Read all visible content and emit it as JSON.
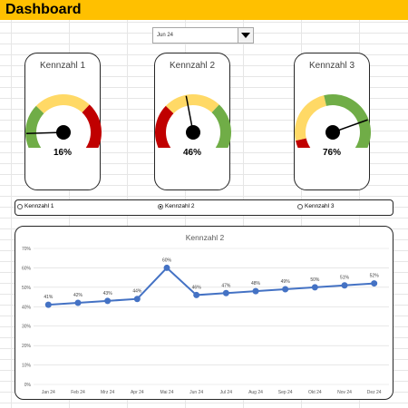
{
  "header": {
    "title": "Dashboard"
  },
  "month_select": {
    "value": "Jun 24"
  },
  "gauges": [
    {
      "title": "Kennzahl 1",
      "value_label": "16%",
      "value": 0.16
    },
    {
      "title": "Kennzahl 2",
      "value_label": "46%",
      "value": 0.46
    },
    {
      "title": "Kennzahl 3",
      "value_label": "76%",
      "value": 0.76
    }
  ],
  "gauge_colors": {
    "green": "#70ad47",
    "yellow": "#ffd966",
    "red": "#c00000"
  },
  "radio_options": [
    {
      "label": "Kennzahl 1",
      "selected": false
    },
    {
      "label": "Kennzahl 2",
      "selected": true
    },
    {
      "label": "Kennzahl 3",
      "selected": false
    }
  ],
  "chart_data": {
    "type": "line",
    "title": "Kennzahl 2",
    "categories": [
      "Jan 24",
      "Feb 24",
      "Mrz 24",
      "Apr 24",
      "Mai 24",
      "Jun 24",
      "Jul 24",
      "Aug 24",
      "Sep 24",
      "Okt 24",
      "Nov 24",
      "Dez 24"
    ],
    "values": [
      41,
      42,
      43,
      44,
      60,
      46,
      47,
      48,
      49,
      50,
      51,
      52
    ],
    "data_labels": [
      "41%",
      "42%",
      "43%",
      "44%",
      "60%",
      "46%",
      "47%",
      "48%",
      "49%",
      "50%",
      "51%",
      "52%"
    ],
    "y_ticks": [
      "0%",
      "10%",
      "20%",
      "30%",
      "40%",
      "50%",
      "60%",
      "70%"
    ],
    "ylim": [
      0,
      70
    ],
    "grid": true,
    "line_color": "#4472c4"
  }
}
